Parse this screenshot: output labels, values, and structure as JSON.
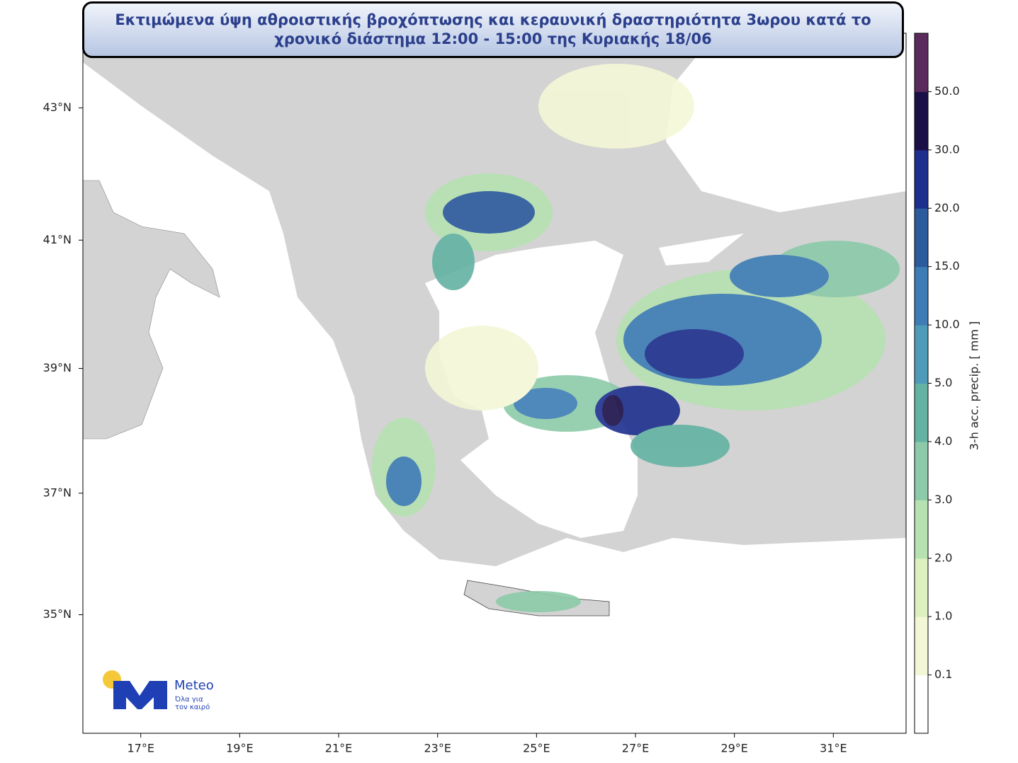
{
  "title": "Εκτιμώμενα ύψη αθροιστικής βροχόπτωσης και κεραυνική δραστηριότητα 3ωρου κατά το χρονικό διάστημα 12:00 - 15:00 της Κυριακής 18/06",
  "map": {
    "xlim": [
      15.83,
      32.47
    ],
    "ylim": [
      33.0,
      44.1
    ],
    "xticks": [
      {
        "value": 17,
        "label": "17°E"
      },
      {
        "value": 19,
        "label": "19°E"
      },
      {
        "value": 21,
        "label": "21°E"
      },
      {
        "value": 23,
        "label": "23°E"
      },
      {
        "value": 25,
        "label": "25°E"
      },
      {
        "value": 27,
        "label": "27°E"
      },
      {
        "value": 29,
        "label": "29°E"
      },
      {
        "value": 31,
        "label": "31°E"
      }
    ],
    "yticks": [
      {
        "value": 43,
        "label": "43°N"
      },
      {
        "value": 41,
        "label": "41°N"
      },
      {
        "value": 39,
        "label": "39°N"
      },
      {
        "value": 37,
        "label": "37°N"
      },
      {
        "value": 35,
        "label": "35°N"
      }
    ]
  },
  "colorbar": {
    "label": "3-h acc. precip. [ mm ]",
    "ticks": [
      {
        "value": 0.1,
        "label": "0.1"
      },
      {
        "value": 1,
        "label": "1.0"
      },
      {
        "value": 2,
        "label": "2.0"
      },
      {
        "value": 3,
        "label": "3.0"
      },
      {
        "value": 4,
        "label": "4.0"
      },
      {
        "value": 5,
        "label": "5.0"
      },
      {
        "value": 10,
        "label": "10.0"
      },
      {
        "value": 15,
        "label": "15.0"
      },
      {
        "value": 20,
        "label": "20.0"
      },
      {
        "value": 30,
        "label": "30.0"
      },
      {
        "value": 50,
        "label": "50.0"
      }
    ],
    "colors": [
      "#ffffff",
      "#f4f7d6",
      "#ddf0bf",
      "#b6e2b1",
      "#8ccaa9",
      "#63b2a2",
      "#4e9bb9",
      "#3d7cb4",
      "#2b5b9d",
      "#1d2f8e",
      "#1b0f48",
      "#5b2a5c"
    ]
  },
  "logo": {
    "name": "Meteo",
    "tagline_1": "Όλα για",
    "tagline_2": "τον καιρό"
  }
}
